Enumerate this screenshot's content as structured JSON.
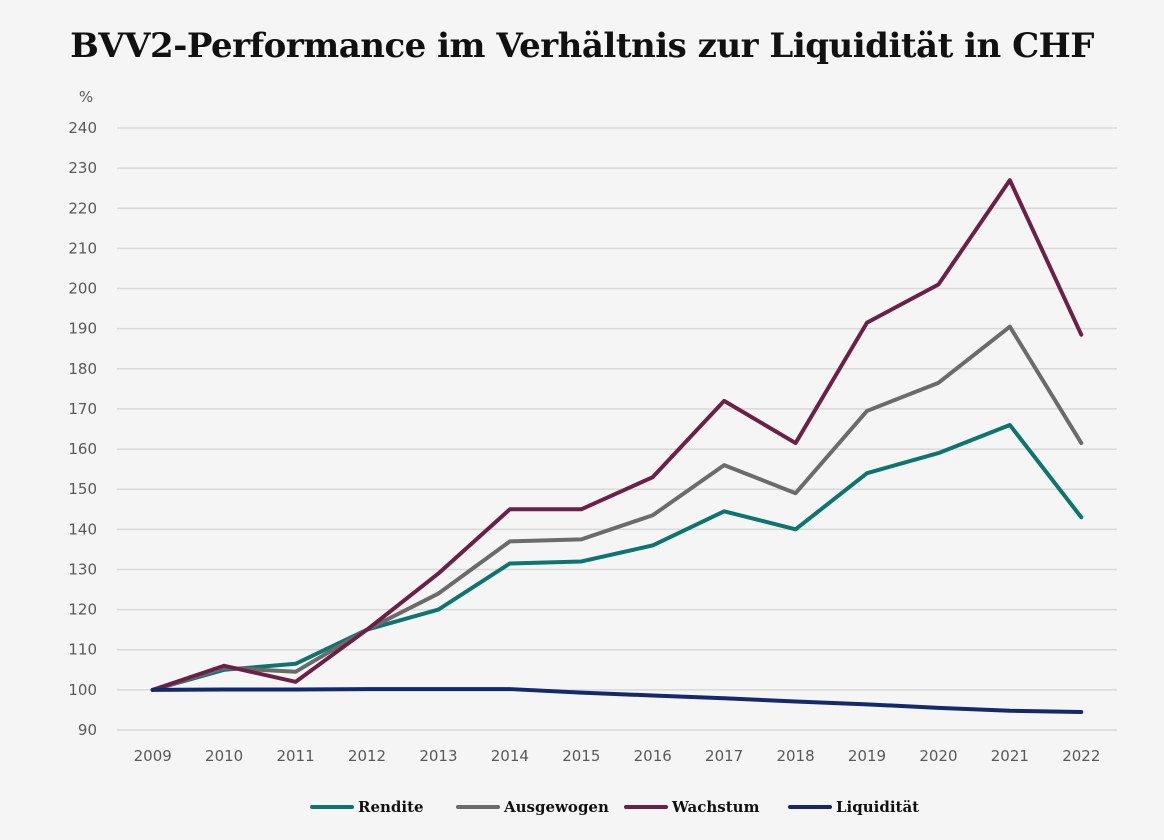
{
  "chart_data": {
    "type": "line",
    "title": "BVV2-Performance im Verhältnis zur Liquidität in CHF",
    "ylabel": "%",
    "xlabel": "",
    "ylim": [
      90,
      240
    ],
    "yticks": [
      90,
      100,
      110,
      120,
      130,
      140,
      150,
      160,
      170,
      180,
      190,
      200,
      210,
      220,
      230,
      240
    ],
    "grid": true,
    "legend_position": "bottom",
    "categories": [
      "2009",
      "2010",
      "2011",
      "2012",
      "2013",
      "2014",
      "2015",
      "2016",
      "2017",
      "2018",
      "2019",
      "2020",
      "2021",
      "2022"
    ],
    "series": [
      {
        "name": "Rendite",
        "color": "#0e7470",
        "values": [
          100,
          105,
          106.5,
          115,
          120,
          131.5,
          132,
          136,
          144.5,
          140,
          154,
          159,
          166,
          143
        ]
      },
      {
        "name": "Ausgewogen",
        "color": "#6b6b6b",
        "values": [
          100,
          105.5,
          104.5,
          115,
          124,
          137,
          137.5,
          143.5,
          156,
          149,
          169.5,
          176.5,
          190.5,
          161.5
        ]
      },
      {
        "name": "Wachstum",
        "color": "#6b2045",
        "values": [
          100,
          106,
          102,
          115,
          129,
          145,
          145,
          153,
          172,
          161.5,
          191.5,
          201,
          227,
          188.5
        ]
      },
      {
        "name": "Liquidität",
        "color": "#14296b",
        "values": [
          100,
          100.1,
          100.1,
          100.2,
          100.2,
          100.2,
          99.3,
          98.6,
          97.9,
          97.1,
          96.4,
          95.5,
          94.8,
          94.5
        ]
      }
    ]
  }
}
